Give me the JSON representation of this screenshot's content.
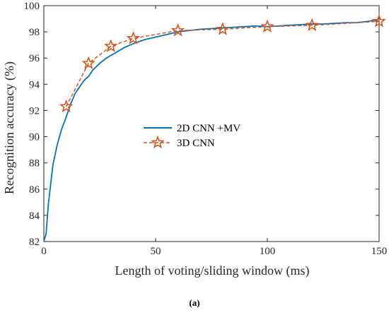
{
  "caption": "(a)",
  "chart_data": {
    "type": "line",
    "title": "",
    "xlabel": "Length of voting/sliding window (ms)",
    "ylabel": "Recognition accuracy (%)",
    "xlim": [
      0,
      150
    ],
    "ylim": [
      82,
      100
    ],
    "xticks": [
      0,
      50,
      100,
      150
    ],
    "yticks": [
      82,
      84,
      86,
      88,
      90,
      92,
      94,
      96,
      98,
      100
    ],
    "grid": false,
    "legend": "center",
    "series": [
      {
        "name": "2D CNN +MV",
        "color": "#0072BD",
        "style": "solid",
        "x": [
          0,
          1,
          2,
          3,
          4,
          5,
          6,
          8,
          10,
          12,
          14,
          16,
          18,
          20,
          22,
          25,
          28,
          30,
          33,
          36,
          40,
          45,
          50,
          55,
          60,
          65,
          70,
          75,
          80,
          85,
          90,
          95,
          100,
          105,
          110,
          115,
          120,
          125,
          130,
          135,
          140,
          145,
          148,
          150
        ],
        "y": [
          82.0,
          82.6,
          84.8,
          86.3,
          87.8,
          88.6,
          89.4,
          90.6,
          91.5,
          92.5,
          93.3,
          93.8,
          94.3,
          94.6,
          95.1,
          95.6,
          96.0,
          96.2,
          96.5,
          96.8,
          97.1,
          97.4,
          97.6,
          97.8,
          98.0,
          98.1,
          98.2,
          98.25,
          98.3,
          98.35,
          98.4,
          98.45,
          98.4,
          98.45,
          98.5,
          98.55,
          98.6,
          98.6,
          98.65,
          98.7,
          98.7,
          98.8,
          98.9,
          98.8
        ]
      },
      {
        "name": "3D CNN",
        "color": "#D95319",
        "style": "dashed",
        "marker": "star",
        "x": [
          10,
          20,
          30,
          40,
          60,
          80,
          100,
          120,
          150
        ],
        "y": [
          92.3,
          95.6,
          96.9,
          97.5,
          98.1,
          98.2,
          98.4,
          98.5,
          98.8
        ]
      }
    ]
  }
}
